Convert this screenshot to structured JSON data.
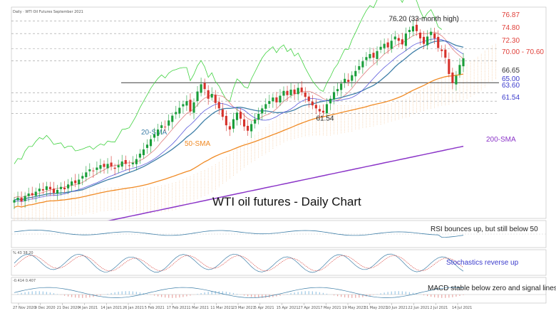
{
  "chart_data": {
    "type": "candlestick",
    "header": "Daily · WTI Oil Futures September 2021",
    "title": "WTI oil futures - Daily Chart",
    "price_range": [
      45,
      78
    ],
    "x_dates": [
      "27 Nov 2020",
      "9 Dec 2020",
      "21 Dec 2020",
      "4 Jan 2021",
      "14 Jan 2021",
      "26 Jan 2021",
      "5 Feb 2021",
      "17 Feb 2021",
      "1 Mar 2021",
      "11 Mar 2021",
      "23 Mar 2021",
      "5 Apr 2021",
      "15 Apr 2021",
      "27 Apr 2021",
      "7 May 2021",
      "19 May 2021",
      "31 May 2021",
      "10 Jun 2021",
      "22 Jun 2021",
      "2 Jul 2021",
      "14 Jul 2021"
    ],
    "price_levels": [
      {
        "label": "76.87",
        "value": 76.87,
        "color": "#e0403a"
      },
      {
        "label": "74.80",
        "value": 74.8,
        "color": "#e0403a"
      },
      {
        "label": "72.30",
        "value": 72.3,
        "color": "#e0403a"
      },
      {
        "label": "70.00 - 70.60",
        "value": 70.3,
        "color": "#e0403a"
      },
      {
        "label": "66.65",
        "value": 66.65,
        "color": "#333333"
      },
      {
        "label": "65.00",
        "value": 65.0,
        "color": "#3a3acc"
      },
      {
        "label": "63.60",
        "value": 63.6,
        "color": "#3a3acc"
      },
      {
        "label": "61.54",
        "value": 61.54,
        "color": "#3a3acc"
      }
    ],
    "annotations": [
      {
        "text": "76.20 (33-month high)",
        "date_index": 111,
        "value": 76.2
      },
      {
        "text": "61.54",
        "date_index": 86,
        "value": 61.54
      }
    ],
    "series_labels": [
      {
        "name": "20-SMA",
        "color": "#3f7fa8"
      },
      {
        "name": "50-SMA",
        "color": "#f08a24"
      },
      {
        "name": "200-SMA",
        "color": "#8b35c8"
      }
    ],
    "closes": [
      47.2,
      47.6,
      47.0,
      47.9,
      48.3,
      48.0,
      48.6,
      49.1,
      48.8,
      49.5,
      49.0,
      48.4,
      48.9,
      49.4,
      49.0,
      49.8,
      50.3,
      50.0,
      50.6,
      51.2,
      51.8,
      52.3,
      52.0,
      52.6,
      53.0,
      52.7,
      53.2,
      52.8,
      52.4,
      53.0,
      53.6,
      53.2,
      52.9,
      53.4,
      54.0,
      54.9,
      55.6,
      56.4,
      57.3,
      58.1,
      58.9,
      59.6,
      59.3,
      60.4,
      61.2,
      61.8,
      62.5,
      63.1,
      63.6,
      61.9,
      63.4,
      65.2,
      66.4,
      65.6,
      64.0,
      64.8,
      63.3,
      62.4,
      61.0,
      59.6,
      58.9,
      60.6,
      61.7,
      60.7,
      59.4,
      58.7,
      59.8,
      60.6,
      61.5,
      62.4,
      63.1,
      63.6,
      64.2,
      63.4,
      64.5,
      65.3,
      64.6,
      65.5,
      64.8,
      65.8,
      65.1,
      64.3,
      63.6,
      62.9,
      62.4,
      61.9,
      61.7,
      63.1,
      64.0,
      65.1,
      65.6,
      66.5,
      67.3,
      66.8,
      67.9,
      68.6,
      69.4,
      70.2,
      70.9,
      71.4,
      70.8,
      71.9,
      72.6,
      73.1,
      72.5,
      73.6,
      74.3,
      73.6,
      73.0,
      74.8,
      75.4,
      76.0,
      75.2,
      74.0,
      73.1,
      74.3,
      75.1,
      74.0,
      72.4,
      71.9,
      70.8,
      68.1,
      66.6,
      67.8,
      69.6,
      70.7
    ],
    "indicators": [
      {
        "name": "RSI",
        "label": "RSI bounces up, but still below 50",
        "value": 47
      },
      {
        "name": "Stochastics",
        "header": "% 43 38.20",
        "label": "Stochastics reverse up",
        "value": 38.2
      },
      {
        "name": "MACD",
        "header": "-0.414 0.407",
        "label": "MACD stable below zero and signal lines",
        "value": -0.414
      }
    ],
    "colors": {
      "up": "#1a9e3a",
      "down": "#d6322b",
      "sma20": "#3f7fa8",
      "sma50": "#f08a24",
      "sma200": "#8b35c8",
      "rsi": "#3f7fa8"
    }
  }
}
